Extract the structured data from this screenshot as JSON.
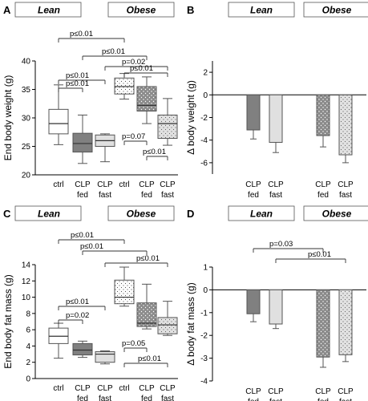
{
  "chart_data": [
    {
      "panel": "A",
      "type": "boxplot",
      "ylabel": "End body weight (g)",
      "ylim": [
        20,
        40
      ],
      "yticks": [
        "20",
        "25",
        "30",
        "35",
        "40"
      ],
      "group_titles": [
        "Lean",
        "Obese"
      ],
      "categories": [
        "ctrl",
        "CLP fed",
        "CLP fast",
        "ctrl",
        "CLP fed",
        "CLP fast"
      ],
      "boxes": [
        {
          "min": 25.3,
          "q1": 27.2,
          "median": 29.0,
          "q3": 31.5,
          "max": 35.8,
          "fill": "white"
        },
        {
          "min": 22.0,
          "q1": 24.0,
          "median": 25.5,
          "q3": 27.3,
          "max": 30.5,
          "fill": "dark-grey"
        },
        {
          "min": 22.3,
          "q1": 25.0,
          "median": 26.0,
          "q3": 27.0,
          "max": 27.2,
          "fill": "light-grey"
        },
        {
          "min": 33.3,
          "q1": 34.2,
          "median": 35.5,
          "q3": 37.0,
          "max": 37.8,
          "fill": "white-dotted"
        },
        {
          "min": 29.0,
          "q1": 31.2,
          "median": 32.2,
          "q3": 35.5,
          "max": 37.2,
          "fill": "grey-dotted"
        },
        {
          "min": 25.2,
          "q1": 26.4,
          "median": 29.0,
          "q3": 30.5,
          "max": 33.4,
          "fill": "light-grey-dotted"
        }
      ],
      "comparisons": [
        {
          "from": 0,
          "to": 3,
          "label": "p≤0.01"
        },
        {
          "from": 1,
          "to": 4,
          "label": "p≤0.01"
        },
        {
          "from": 2,
          "to": 5,
          "label": "p=0.02"
        },
        {
          "from": 0,
          "to": 2,
          "label": "p≤0.01"
        },
        {
          "from": 0,
          "to": 1,
          "label": "p≤0.01"
        },
        {
          "from": 3,
          "to": 5,
          "label": "p≤0.01"
        },
        {
          "from": 3,
          "to": 4,
          "label": "p=0.07"
        },
        {
          "from": 4,
          "to": 5,
          "label": "p≤0.01"
        }
      ]
    },
    {
      "panel": "B",
      "type": "bar",
      "ylabel": "Δ body weight (g)",
      "ylim": [
        -7,
        3
      ],
      "yticks": [
        "2",
        "0",
        "-2",
        "-4",
        "-6"
      ],
      "group_titles": [
        "Lean",
        "Obese"
      ],
      "categories": [
        "CLP fed",
        "CLP fast",
        "CLP fed",
        "CLP fast"
      ],
      "values": [
        -3.1,
        -4.2,
        -3.6,
        -5.3
      ],
      "errors": [
        0.8,
        0.9,
        1.0,
        0.7
      ],
      "fills": [
        "dark-grey",
        "light-grey",
        "grey-dotted",
        "light-grey-dotted"
      ],
      "comparisons": []
    },
    {
      "panel": "C",
      "type": "boxplot",
      "ylabel": "End body fat mass (g)",
      "ylim": [
        0,
        14
      ],
      "yticks": [
        "0",
        "2",
        "4",
        "6",
        "8",
        "10",
        "12",
        "14"
      ],
      "group_titles": [
        "Lean",
        "Obese"
      ],
      "categories": [
        "ctrl",
        "CLP fed",
        "CLP fast",
        "ctrl",
        "CLP fed",
        "CLP fast"
      ],
      "boxes": [
        {
          "min": 2.5,
          "q1": 4.3,
          "median": 5.2,
          "q3": 6.2,
          "max": 6.8,
          "fill": "white"
        },
        {
          "min": 2.6,
          "q1": 2.9,
          "median": 3.5,
          "q3": 4.3,
          "max": 4.6,
          "fill": "dark-grey"
        },
        {
          "min": 1.8,
          "q1": 2.0,
          "median": 3.0,
          "q3": 3.3,
          "max": 3.4,
          "fill": "light-grey"
        },
        {
          "min": 8.9,
          "q1": 9.2,
          "median": 10.0,
          "q3": 12.1,
          "max": 13.7,
          "fill": "white-dotted"
        },
        {
          "min": 6.1,
          "q1": 6.4,
          "median": 6.8,
          "q3": 9.3,
          "max": 11.6,
          "fill": "grey-dotted"
        },
        {
          "min": 5.3,
          "q1": 5.5,
          "median": 6.6,
          "q3": 7.5,
          "max": 9.5,
          "fill": "light-grey-dotted"
        }
      ],
      "comparisons": [
        {
          "from": 0,
          "to": 3,
          "label": "p≤0.01"
        },
        {
          "from": 1,
          "to": 4,
          "label": "p≤0.01"
        },
        {
          "from": 2,
          "to": 5,
          "label": "p≤0.01"
        },
        {
          "from": 0,
          "to": 2,
          "label": "p≤0.01"
        },
        {
          "from": 0,
          "to": 1,
          "label": "p=0.02"
        },
        {
          "from": 3,
          "to": 4,
          "label": "p=0.05"
        },
        {
          "from": 3,
          "to": 5,
          "label": "p≤0.01"
        }
      ]
    },
    {
      "panel": "D",
      "type": "bar",
      "ylabel": "Δ body fat mass (g)",
      "ylim": [
        -4,
        1
      ],
      "yticks": [
        "1",
        "0",
        "-1",
        "-2",
        "-3",
        "-4"
      ],
      "group_titles": [
        "Lean",
        "Obese"
      ],
      "categories": [
        "CLP fed",
        "CLP fast",
        "CLP fed",
        "CLP fast"
      ],
      "values": [
        -1.05,
        -1.5,
        -2.95,
        -2.85
      ],
      "errors": [
        0.35,
        0.2,
        0.45,
        0.3
      ],
      "fills": [
        "dark-grey",
        "light-grey",
        "grey-dotted",
        "light-grey-dotted"
      ],
      "comparisons": [
        {
          "from": 0,
          "to": 2,
          "label": "p=0.03"
        },
        {
          "from": 1,
          "to": 3,
          "label": "p≤0.01"
        }
      ]
    }
  ]
}
